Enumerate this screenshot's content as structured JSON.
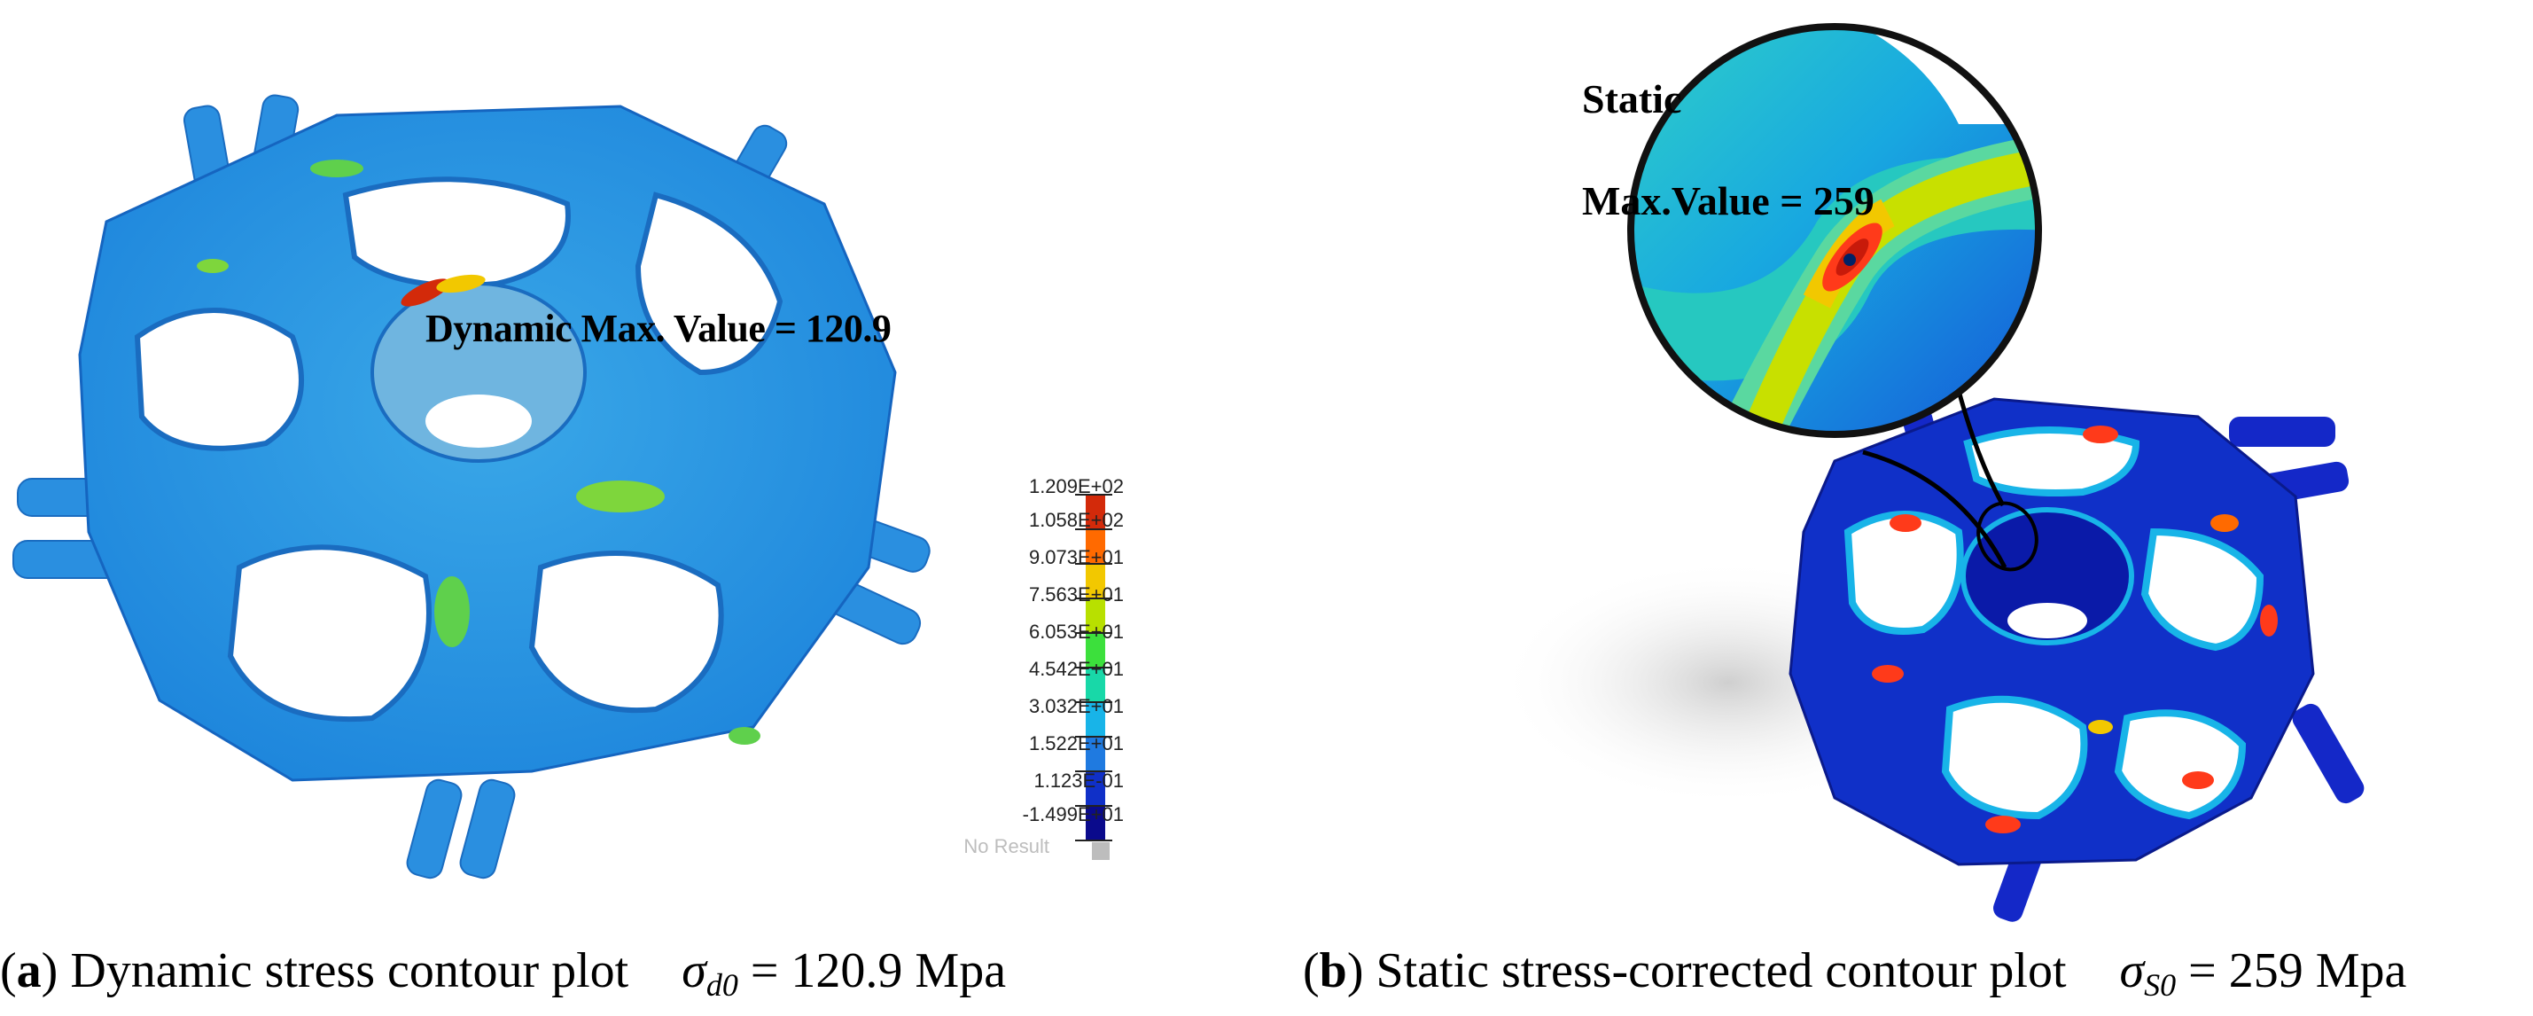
{
  "panel_a": {
    "annotation": "Dynamic Max. Value = 120.9",
    "legend": {
      "ticks": [
        "1.209E+02",
        "1.058E+02",
        "9.073E+01",
        "7.563E+01",
        "6.053E+01",
        "4.542E+01",
        "3.032E+01",
        "1.522E+01",
        "1.123E-01",
        "-1.499E+01"
      ],
      "no_result": "No Result",
      "colors": [
        "#d32a0a",
        "#ff6a00",
        "#f2c800",
        "#b8e000",
        "#3ce03c",
        "#18d8a8",
        "#18b4e8",
        "#1f7ae0",
        "#1030c8",
        "#0a0a8c"
      ]
    },
    "caption": {
      "letter": "a",
      "text": " Dynamic stress contour plot",
      "symbol": "σ",
      "subscript": "d0",
      "value": " = 120.9 Mpa"
    }
  },
  "panel_b": {
    "zoom_title": "Static",
    "zoom_annotation": "Max.Value = 259",
    "caption": {
      "letter": "b",
      "text": " Static stress-corrected contour plot",
      "symbol": "σ",
      "subscript": "S0",
      "value": " = 259 Mpa"
    }
  }
}
